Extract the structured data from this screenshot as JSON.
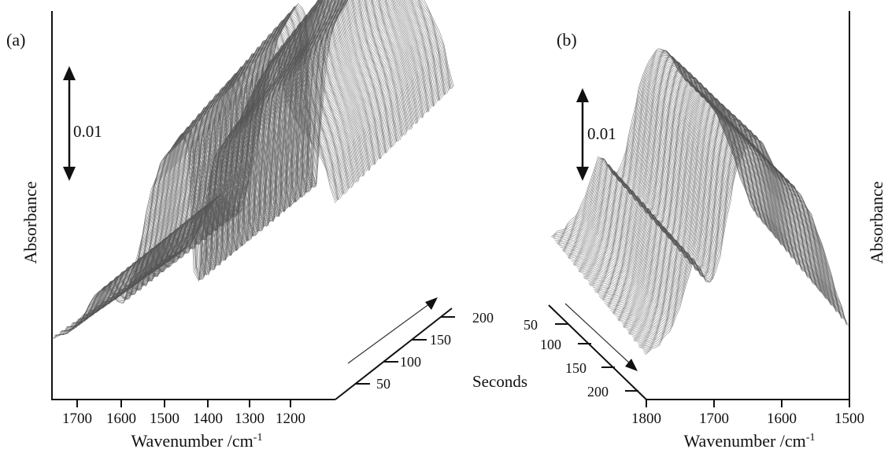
{
  "chart_data": [
    {
      "panel_label": "(a)",
      "type": "waterfall",
      "xlabel": "Wavenumber /cm",
      "xlabel_sup": "-1",
      "ylabel": "Absorbance",
      "zlabel": "Seconds",
      "scale_bar_label": "0.01",
      "x_ticks": [
        "1700",
        "1600",
        "1500",
        "1400",
        "1300",
        "1200"
      ],
      "z_ticks": [
        "50",
        "100",
        "150",
        "200"
      ],
      "xlim": [
        1750,
        1150
      ],
      "zlim": [
        0,
        230
      ],
      "series": [
        {
          "x": [
            1745,
            1720,
            1700,
            1680,
            1660,
            1640,
            1620,
            1600,
            1580,
            1560,
            1540,
            1520,
            1500,
            1480,
            1460,
            1450,
            1440,
            1420,
            1400,
            1380,
            1360,
            1340,
            1320,
            1300,
            1290,
            1280,
            1260,
            1240,
            1220,
            1200,
            1180,
            1160
          ],
          "y": [
            0.0,
            0.0005,
            0.0015,
            0.0035,
            0.006,
            0.0075,
            0.006,
            0.005,
            0.009,
            0.015,
            0.022,
            0.026,
            0.028,
            0.03,
            0.028,
            0.004,
            0.01,
            0.025,
            0.028,
            0.03,
            0.032,
            0.035,
            0.038,
            0.04,
            0.042,
            0.04,
            0.035,
            0.032,
            0.03,
            0.028,
            0.025,
            0.02
          ],
          "note": ""
        }
      ],
      "z_growth": [
        0.0,
        0.55,
        1.0,
        1.25
      ]
    },
    {
      "panel_label": "(b)",
      "type": "waterfall",
      "xlabel": "Wavenumber /cm",
      "xlabel_sup": "-1",
      "ylabel": "Absorbance",
      "zlabel": "",
      "scale_bar_label": "0.01",
      "x_ticks": [
        "1800",
        "1700",
        "1600",
        "1500"
      ],
      "z_ticks": [
        "50",
        "100",
        "150",
        "200"
      ],
      "xlim": [
        1800,
        1500
      ],
      "zlim": [
        0,
        230
      ],
      "series": [
        {
          "x": [
            1800,
            1780,
            1760,
            1750,
            1740,
            1730,
            1720,
            1710,
            1700,
            1690,
            1680,
            1670,
            1660,
            1650,
            1640,
            1630,
            1620,
            1610,
            1600,
            1590,
            1580,
            1560,
            1540,
            1520,
            1505
          ],
          "y": [
            0.0,
            0.002,
            0.006,
            0.01,
            0.015,
            0.02,
            0.018,
            0.015,
            0.016,
            0.022,
            0.03,
            0.038,
            0.042,
            0.045,
            0.046,
            0.045,
            0.042,
            0.039,
            0.038,
            0.036,
            0.035,
            0.03,
            0.022,
            0.012,
            0.006
          ]
        }
      ],
      "z_growth": [
        0.0,
        0.35,
        0.75,
        1.0
      ]
    }
  ]
}
